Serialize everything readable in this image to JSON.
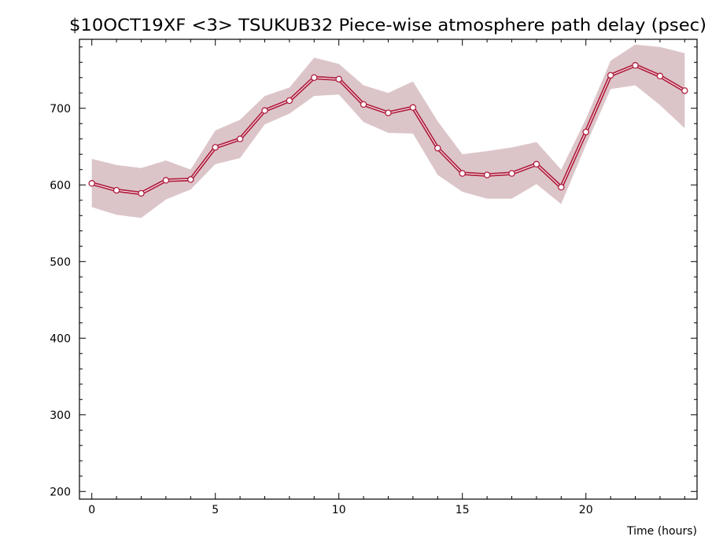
{
  "chart_data": {
    "type": "line",
    "title": "$10OCT19XF <3>  TSUKUB32  Piece-wise atmosphere path delay (psec)",
    "xlabel": "Time (hours)",
    "ylabel": "",
    "xlim": [
      -0.5,
      24.5
    ],
    "ylim": [
      190,
      790
    ],
    "x_ticks": [
      0,
      5,
      10,
      15,
      20
    ],
    "x_tick_labels": [
      "0",
      "5",
      "10",
      "15",
      "20"
    ],
    "y_ticks": [
      200,
      300,
      400,
      500,
      600,
      700
    ],
    "y_tick_labels": [
      "200",
      "300",
      "400",
      "500",
      "600",
      "700"
    ],
    "grid": false,
    "legend": "none",
    "colors": {
      "line": "#b02040",
      "band": "#dcc5c9",
      "marker_fill": "#ffffff",
      "axis": "#000000"
    },
    "series": [
      {
        "x": [
          0,
          1,
          2,
          3,
          4,
          5,
          6,
          7,
          8,
          9,
          10,
          11,
          12,
          13,
          14,
          15,
          16,
          17,
          18,
          19,
          20,
          21,
          22,
          23,
          24
        ],
        "values": [
          602,
          593,
          589,
          606,
          607,
          649,
          660,
          697,
          710,
          740,
          738,
          705,
          694,
          701,
          648,
          615,
          613,
          615,
          627,
          597,
          669,
          743,
          756,
          742,
          723
        ],
        "upper": [
          634,
          626,
          622,
          632,
          620,
          671,
          685,
          716,
          727,
          766,
          758,
          730,
          720,
          735,
          683,
          640,
          644,
          649,
          656,
          620,
          686,
          762,
          783,
          780,
          772
        ],
        "lower": [
          571,
          561,
          557,
          581,
          594,
          627,
          635,
          679,
          693,
          716,
          718,
          682,
          668,
          667,
          613,
          591,
          582,
          582,
          601,
          575,
          652,
          725,
          730,
          704,
          674
        ]
      }
    ]
  }
}
